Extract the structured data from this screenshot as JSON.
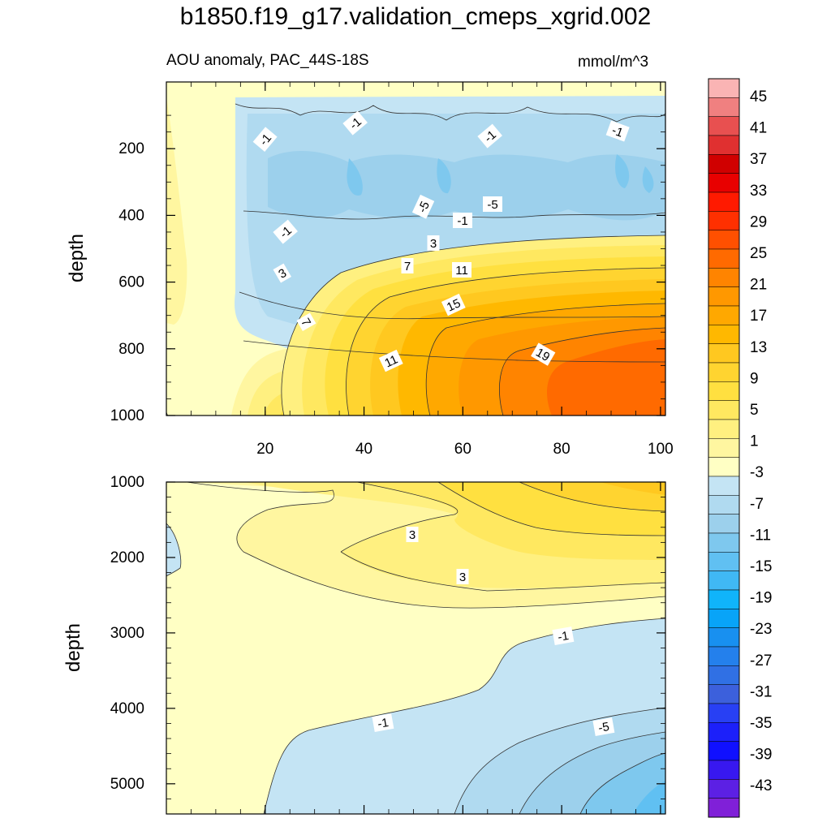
{
  "title": "b1850.f19_g17.validation_cmeps_xgrid.002",
  "subtitle_left": "AOU anomaly, PAC_44S-18S",
  "subtitle_right": "mmol/m^3",
  "chart_data": [
    {
      "type": "contour",
      "panel": "upper",
      "xlabel": "",
      "ylabel": "depth",
      "xlim": [
        0,
        101
      ],
      "ylim": [
        1000,
        0
      ],
      "x_ticks": [
        20,
        40,
        60,
        80,
        100
      ],
      "y_ticks": [
        200,
        400,
        600,
        800,
        1000
      ],
      "contour_labels": [
        "-1",
        "-1",
        "-1",
        "-1",
        "-5",
        "-5",
        "-1",
        "-1",
        "3",
        "3",
        "7",
        "11",
        "15",
        "7",
        "11",
        "19"
      ],
      "value_range": [
        -7,
        23
      ],
      "structure": "negative AOU anomaly band between ~120-450 m; positive anomaly increasing toward x=100 at 600-1000 m, peak ~23 near x=95, depth 750 m"
    },
    {
      "type": "contour",
      "panel": "lower",
      "xlabel": "",
      "ylabel": "depth",
      "xlim": [
        0,
        101
      ],
      "ylim": [
        5400,
        1000
      ],
      "y_ticks": [
        1000,
        2000,
        3000,
        4000,
        5000
      ],
      "contour_labels": [
        "3",
        "3",
        "-1",
        "-1",
        "-5"
      ],
      "value_range": [
        -13,
        9
      ],
      "structure": "weak positive anomaly 1-9 above ~2800 m, negative anomaly deepening and strengthening toward x=100 below 3000 m"
    }
  ],
  "colorbar": {
    "labels": [
      "45",
      "41",
      "37",
      "33",
      "29",
      "25",
      "21",
      "17",
      "13",
      "9",
      "5",
      "1",
      "-3",
      "-7",
      "-11",
      "-15",
      "-19",
      "-23",
      "-27",
      "-31",
      "-35",
      "-39",
      "-43"
    ],
    "colors": [
      "#fab4b4",
      "#f08080",
      "#e85050",
      "#e03030",
      "#d00000",
      "#e80000",
      "#ff1a00",
      "#ff3000",
      "#ff5000",
      "#ff6a00",
      "#ff8400",
      "#ff9800",
      "#ffa800",
      "#ffb800",
      "#ffc820",
      "#ffd430",
      "#ffe040",
      "#ffe860",
      "#fff080",
      "#fff6a0",
      "#ffffc4",
      "#c4e4f4",
      "#b0daf0",
      "#9cd0ec",
      "#7ec8ee",
      "#60c0f2",
      "#40b8f4",
      "#10b4fa",
      "#08a4f8",
      "#1890f0",
      "#2480ec",
      "#3070e4",
      "#3c60dc",
      "#2840f4",
      "#1c20fa",
      "#1010ff",
      "#3818f0",
      "#5c20e4",
      "#8020d8"
    ]
  }
}
